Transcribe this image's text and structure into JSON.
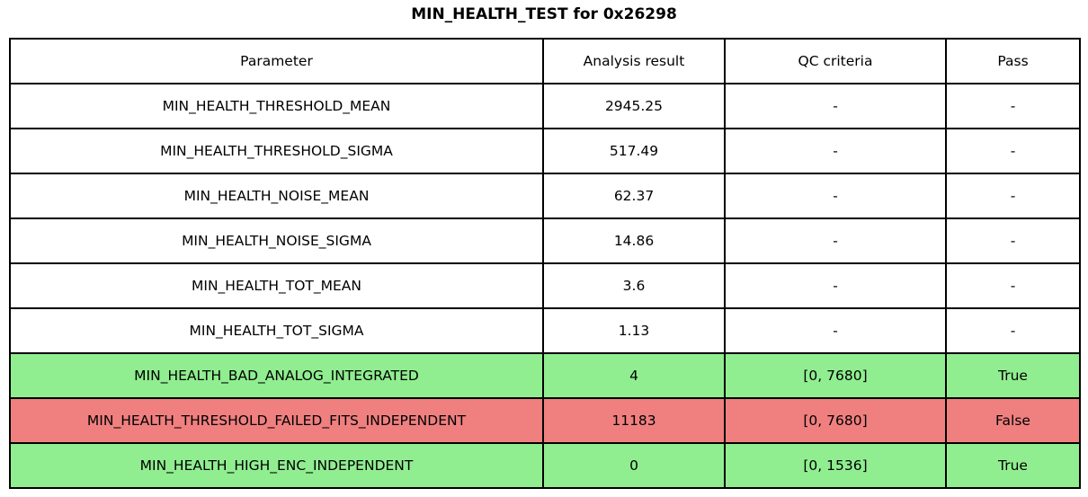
{
  "title": "MIN_HEALTH_TEST for 0x26298",
  "colors": {
    "pass_row": "#90EE90",
    "fail_row": "#F08080",
    "plain_row": "#FFFFFF",
    "border": "#000000",
    "text": "#000000"
  },
  "chart_data": {
    "type": "table",
    "title": "MIN_HEALTH_TEST for 0x26298",
    "columns": [
      "Parameter",
      "Analysis result",
      "QC criteria",
      "Pass"
    ],
    "rows": [
      {
        "parameter": "MIN_HEALTH_THRESHOLD_MEAN",
        "result": "2945.25",
        "qc": "-",
        "pass": "-",
        "status": "none"
      },
      {
        "parameter": "MIN_HEALTH_THRESHOLD_SIGMA",
        "result": "517.49",
        "qc": "-",
        "pass": "-",
        "status": "none"
      },
      {
        "parameter": "MIN_HEALTH_NOISE_MEAN",
        "result": "62.37",
        "qc": "-",
        "pass": "-",
        "status": "none"
      },
      {
        "parameter": "MIN_HEALTH_NOISE_SIGMA",
        "result": "14.86",
        "qc": "-",
        "pass": "-",
        "status": "none"
      },
      {
        "parameter": "MIN_HEALTH_TOT_MEAN",
        "result": "3.6",
        "qc": "-",
        "pass": "-",
        "status": "none"
      },
      {
        "parameter": "MIN_HEALTH_TOT_SIGMA",
        "result": "1.13",
        "qc": "-",
        "pass": "-",
        "status": "none"
      },
      {
        "parameter": "MIN_HEALTH_BAD_ANALOG_INTEGRATED",
        "result": "4",
        "qc": "[0, 7680]",
        "pass": "True",
        "status": "pass"
      },
      {
        "parameter": "MIN_HEALTH_THRESHOLD_FAILED_FITS_INDEPENDENT",
        "result": "11183",
        "qc": "[0, 7680]",
        "pass": "False",
        "status": "fail"
      },
      {
        "parameter": "MIN_HEALTH_HIGH_ENC_INDEPENDENT",
        "result": "0",
        "qc": "[0, 1536]",
        "pass": "True",
        "status": "pass"
      }
    ]
  }
}
